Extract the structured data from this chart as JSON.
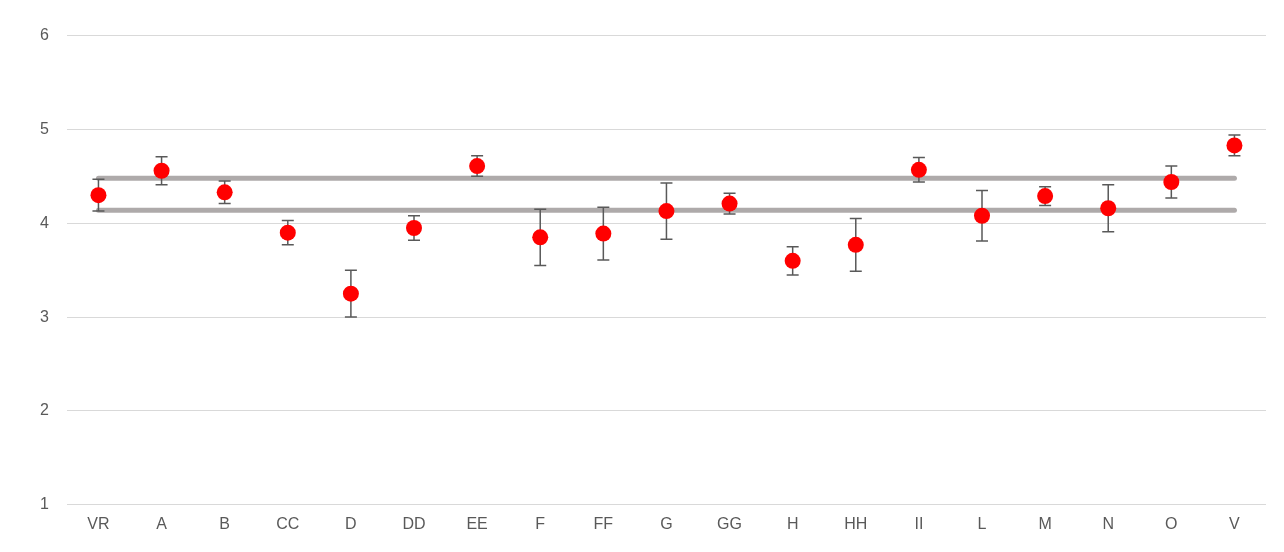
{
  "chart_data": {
    "type": "scatter",
    "categories": [
      "VR",
      "A",
      "B",
      "CC",
      "D",
      "DD",
      "EE",
      "F",
      "FF",
      "G",
      "GG",
      "H",
      "HH",
      "II",
      "L",
      "M",
      "N",
      "O",
      "V"
    ],
    "series": [
      {
        "color": "#ff0000",
        "values": [
          4.3,
          4.56,
          4.33,
          3.9,
          3.25,
          3.95,
          4.61,
          3.85,
          3.89,
          4.13,
          4.21,
          3.6,
          3.77,
          4.57,
          4.08,
          4.29,
          4.16,
          4.44,
          4.83
        ],
        "errors": [
          0.17,
          0.15,
          0.12,
          0.13,
          0.25,
          0.13,
          0.11,
          0.3,
          0.28,
          0.3,
          0.11,
          0.15,
          0.28,
          0.13,
          0.27,
          0.1,
          0.25,
          0.17,
          0.11
        ]
      }
    ],
    "ref_lines": [
      {
        "axis": "y",
        "value": 4.48,
        "label": null,
        "color": "#aeaaaa"
      },
      {
        "axis": "y",
        "value": 4.14,
        "label": null,
        "color": "#aeaaaa"
      }
    ],
    "ylim": [
      1,
      6
    ],
    "yticks": [
      1,
      2,
      3,
      4,
      5,
      6
    ],
    "grid": "y",
    "legend": false,
    "marker": "circle"
  }
}
